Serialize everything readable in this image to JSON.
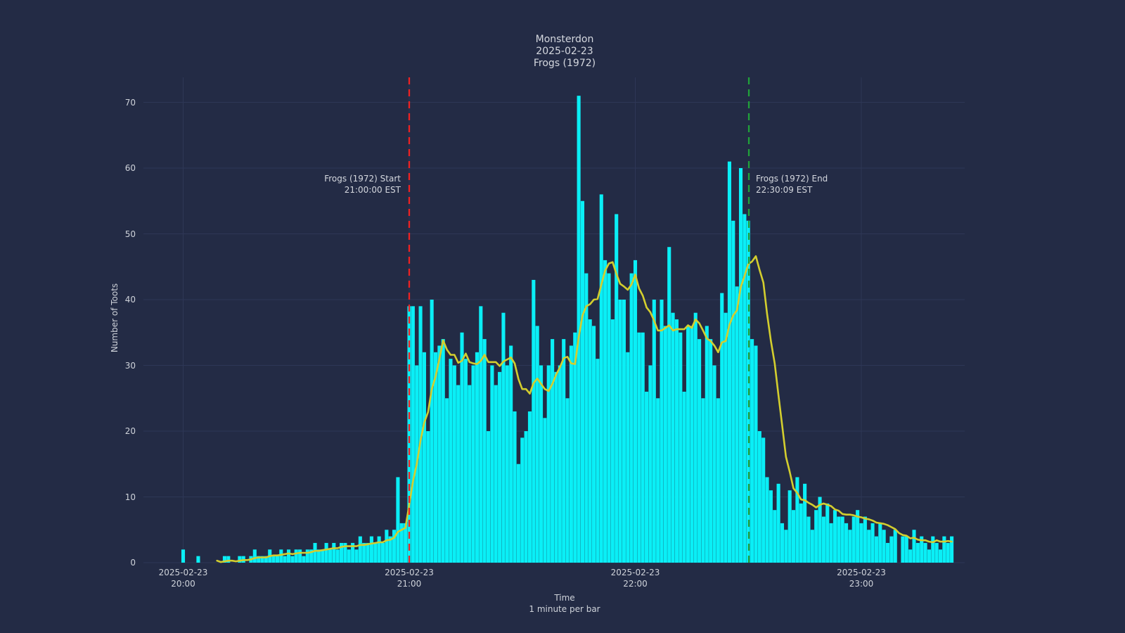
{
  "title": {
    "lines": [
      "Monsterdon",
      "2025-02-23",
      "Frogs (1972)"
    ]
  },
  "axes": {
    "y_label": "Number of Toots",
    "x_label": "Time",
    "x_sublabel": "1 minute per bar",
    "y_ticks": [
      0,
      10,
      20,
      30,
      40,
      50,
      60,
      70
    ],
    "x_ticks": [
      {
        "minute": 0,
        "line1": "2025-02-23",
        "line2": "20:00"
      },
      {
        "minute": 60,
        "line1": "2025-02-23",
        "line2": "21:00"
      },
      {
        "minute": 120,
        "line1": "2025-02-23",
        "line2": "22:00"
      },
      {
        "minute": 180,
        "line1": "2025-02-23",
        "line2": "23:00"
      }
    ]
  },
  "annotations": {
    "start": {
      "line1": "Frogs (1972) Start",
      "line2": "21:00:00 EST"
    },
    "end": {
      "line1": "Frogs (1972) End",
      "line2": "22:30:09 EST"
    }
  },
  "colors": {
    "background": "#232b45",
    "grid": "#2e3756",
    "bar": "#0aeff6",
    "rolling_line": "#d3ce2e",
    "start_line": "#ef2222",
    "end_line": "#21a13a",
    "text": "#d5d8df",
    "tick_text": "#cfd3da"
  },
  "chart_data": {
    "type": "bar",
    "title": "Monsterdon 2025-02-23 Frogs (1972)",
    "xlabel": "Time",
    "x_note": "1 minute per bar",
    "ylabel": "Number of Toots",
    "ylim": [
      0,
      74
    ],
    "grid": true,
    "legend": false,
    "x_start_time": "2025-02-23 20:00 EST",
    "minutes_per_bar": 1,
    "x_tick_times": [
      "2025-02-23 20:00",
      "2025-02-23 21:00",
      "2025-02-23 22:00",
      "2025-02-23 23:00"
    ],
    "values": [
      2,
      0,
      0,
      0,
      1,
      0,
      0,
      0,
      0,
      0,
      0,
      1,
      1,
      0,
      0,
      1,
      1,
      0,
      1,
      2,
      1,
      1,
      1,
      2,
      1,
      1,
      2,
      1,
      2,
      1,
      2,
      2,
      1,
      2,
      2,
      3,
      2,
      2,
      3,
      2,
      3,
      2,
      3,
      3,
      2,
      3,
      2,
      4,
      3,
      3,
      4,
      3,
      4,
      3,
      5,
      4,
      5,
      13,
      6,
      6,
      39,
      39,
      30,
      39,
      32,
      20,
      40,
      32,
      33,
      34,
      25,
      31,
      30,
      27,
      35,
      31,
      27,
      30,
      32,
      39,
      34,
      20,
      30,
      27,
      29,
      38,
      30,
      33,
      23,
      15,
      19,
      20,
      23,
      43,
      36,
      30,
      22,
      30,
      34,
      29,
      30,
      34,
      25,
      33,
      35,
      71,
      55,
      44,
      37,
      36,
      31,
      56,
      46,
      44,
      37,
      53,
      40,
      40,
      32,
      44,
      46,
      35,
      35,
      26,
      30,
      40,
      25,
      40,
      36,
      48,
      38,
      37,
      35,
      26,
      36,
      36,
      38,
      34,
      25,
      36,
      34,
      30,
      25,
      41,
      38,
      61,
      52,
      42,
      60,
      53,
      52,
      34,
      33,
      20,
      19,
      13,
      11,
      8,
      12,
      6,
      5,
      11,
      8,
      13,
      9,
      12,
      7,
      5,
      8,
      10,
      7,
      9,
      6,
      8,
      7,
      7,
      6,
      5,
      7,
      8,
      6,
      7,
      5,
      6,
      4,
      6,
      5,
      3,
      4,
      5,
      0,
      4,
      4,
      2,
      5,
      3,
      4,
      3,
      2,
      4,
      3,
      2,
      4,
      3,
      4
    ],
    "overlay_line": {
      "type": "rolling_mean",
      "window_minutes": 10
    },
    "event_markers": [
      {
        "label": "Frogs (1972) Start",
        "time": "21:00:00 EST",
        "minute": 60
      },
      {
        "label": "Frogs (1972) End",
        "time": "22:30:09 EST",
        "minute": 150.15
      }
    ]
  }
}
